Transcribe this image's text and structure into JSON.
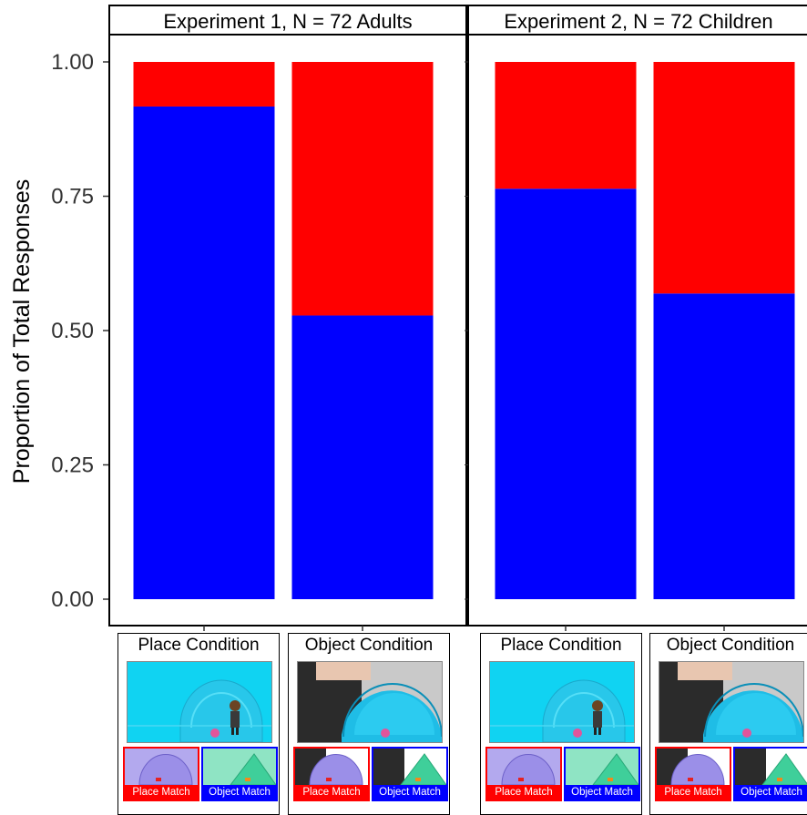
{
  "chart_data": {
    "type": "bar",
    "stacked": true,
    "ylabel": "Proportion of Total Responses",
    "xlabel": "",
    "ylim": [
      0,
      1
    ],
    "yticks": [
      "0.00",
      "0.25",
      "0.50",
      "0.75",
      "1.00"
    ],
    "grid": false,
    "legend": "none",
    "series_colors": {
      "object_match": "#0000ff",
      "place_match": "#ff0000"
    },
    "panels": [
      {
        "title": "Experiment 1, N = 72 Adults",
        "categories": [
          "Place Condition",
          "Object Condition"
        ],
        "series": [
          {
            "name": "Object Match",
            "values": [
              0.917,
              0.528
            ]
          },
          {
            "name": "Place Match",
            "values": [
              0.083,
              0.472
            ]
          }
        ]
      },
      {
        "title": "Experiment 2, N = 72 Children",
        "categories": [
          "Place Condition",
          "Object Condition"
        ],
        "series": [
          {
            "name": "Object Match",
            "values": [
              0.764,
              0.569
            ]
          },
          {
            "name": "Place Match",
            "values": [
              0.236,
              0.431
            ]
          }
        ]
      }
    ]
  },
  "cards": [
    {
      "title": "Place Condition",
      "kind": "place",
      "left_label": "Place Match",
      "right_label": "Object Match"
    },
    {
      "title": "Object Condition",
      "kind": "object",
      "left_label": "Place Match",
      "right_label": "Object Match"
    },
    {
      "title": "Place Condition",
      "kind": "place",
      "left_label": "Place Match",
      "right_label": "Object Match"
    },
    {
      "title": "Object Condition",
      "kind": "object",
      "left_label": "Place Match",
      "right_label": "Object Match"
    }
  ]
}
